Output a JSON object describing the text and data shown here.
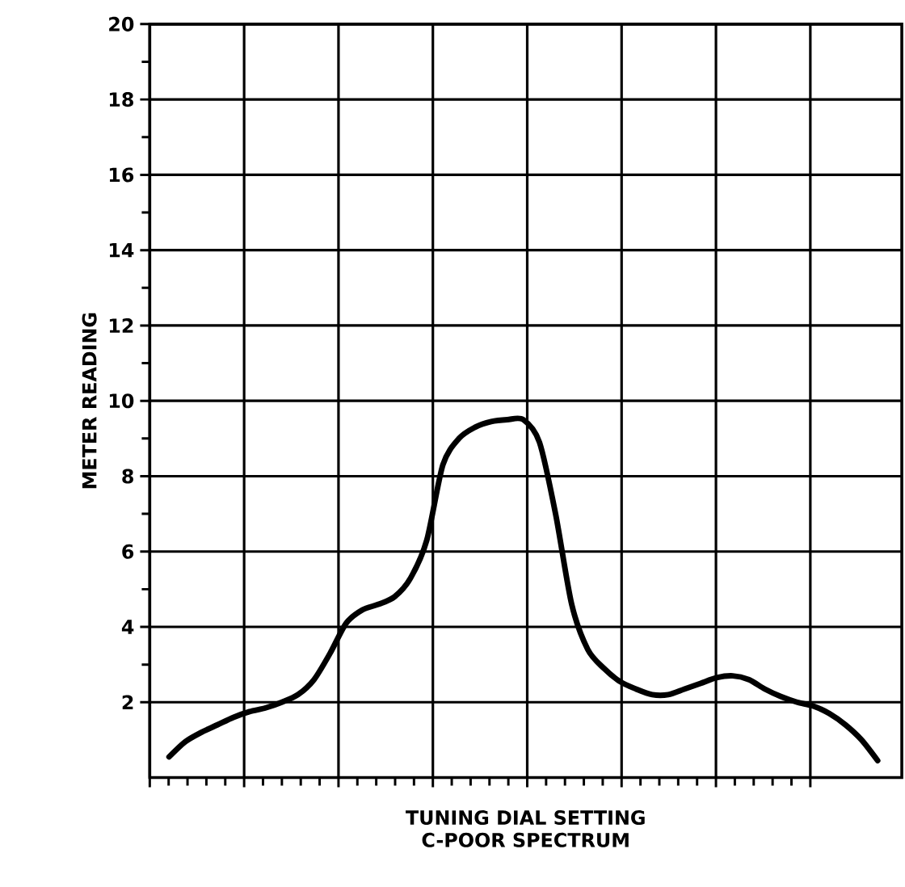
{
  "chart_data": {
    "type": "line",
    "xlabel": "TUNING DIAL SETTING",
    "ylabel": "METER READING",
    "annotations": [
      "C-POOR SPECTRUM"
    ],
    "categories": [
      null,
      null,
      null,
      null,
      null,
      null,
      null,
      null,
      null,
      null,
      null,
      null,
      null,
      null,
      null,
      null,
      null,
      null,
      null,
      null,
      null,
      null,
      null,
      null,
      null,
      null,
      null,
      null,
      null,
      null,
      null,
      null,
      null,
      null,
      null,
      null,
      null,
      null,
      null,
      null,
      null,
      null,
      null,
      null,
      null
    ],
    "series": [
      {
        "color": "#000000",
        "values": [
          0.55,
          0.95,
          1.2,
          1.4,
          1.6,
          1.75,
          1.85,
          2.0,
          2.2,
          2.6,
          3.3,
          4.1,
          4.45,
          4.6,
          4.8,
          5.3,
          6.3,
          8.3,
          9.0,
          9.3,
          9.45,
          9.5,
          9.5,
          8.9,
          7.0,
          4.6,
          3.4,
          2.9,
          2.55,
          2.35,
          2.2,
          2.2,
          2.35,
          2.5,
          2.65,
          2.7,
          2.6,
          2.35,
          2.15,
          2.0,
          1.9,
          1.7,
          1.4,
          1.0,
          0.45
        ]
      }
    ],
    "ylim": [
      0,
      20
    ],
    "yticks": [
      2,
      4,
      6,
      8,
      10,
      12,
      14,
      16,
      18,
      20
    ],
    "grid": true,
    "marker": "none",
    "line_style": "solid"
  }
}
